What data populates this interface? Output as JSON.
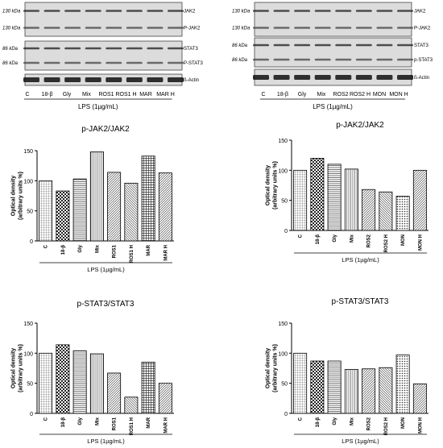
{
  "blots": [
    {
      "strip_groups": [
        [
          {
            "label": "JAK2",
            "size": "130 kDa"
          },
          {
            "label": "P-JAK2",
            "size": "130 kDa"
          }
        ],
        [
          {
            "label": "STAT3",
            "size": "86 kDa"
          },
          {
            "label": "P-STAT3",
            "size": "86 kDa"
          }
        ],
        [
          {
            "label": "ß-Actin",
            "size": ""
          }
        ]
      ],
      "lanes": [
        "C",
        "18-β",
        "Gly",
        "Mix",
        "ROS1",
        "ROS1 H",
        "MAR",
        "MAR H"
      ],
      "treatment": "LPS (1µg/mL)"
    },
    {
      "strip_groups": [
        [
          {
            "label": "JAK2",
            "size": "130 kDa"
          },
          {
            "label": "P-JAK2",
            "size": "130 kDa"
          }
        ],
        [
          {
            "label": "STAT3",
            "size": "86 kDa"
          },
          {
            "label": "p-STAT3",
            "size": "86 kDa"
          }
        ],
        [
          {
            "label": "ß-Actin",
            "size": ""
          }
        ]
      ],
      "lanes": [
        "C",
        "18-β",
        "Gly",
        "Mix",
        "ROS2",
        "ROS2 H",
        "MON",
        "MON H"
      ],
      "treatment": "LPS (1µg/mL)"
    }
  ],
  "chart_data": [
    {
      "type": "bar",
      "title": "p-JAK2/JAK2",
      "categories": [
        "C",
        "18-β",
        "Gly",
        "Mix",
        "ROS1",
        "ROS1 H",
        "MAR",
        "MAR H"
      ],
      "values": [
        100,
        83,
        103,
        148,
        114,
        96,
        141,
        113
      ],
      "patterns": [
        "grid",
        "checker",
        "hlines",
        "vlines",
        "diag",
        "diag2",
        "cross",
        "diag"
      ],
      "ylabel": "Optical density\n(arbitrary units %)",
      "xlabel": "LPS (1µg/mL)",
      "ylim": [
        0,
        150
      ],
      "yticks": [
        0,
        50,
        100,
        150
      ]
    },
    {
      "type": "bar",
      "title": "p-JAK2/JAK2",
      "categories": [
        "C",
        "18-β",
        "Gly",
        "Mix",
        "ROS2",
        "ROS2 H",
        "MON",
        "MON H"
      ],
      "values": [
        100,
        120,
        110,
        102,
        68,
        64,
        57,
        100
      ],
      "patterns": [
        "grid",
        "checker",
        "hlines",
        "vlines",
        "diag",
        "diag2",
        "dots",
        "diag"
      ],
      "ylabel": "Optical density\n(arbitrary units %)",
      "xlabel": "LPS (1µg/mL)",
      "ylim": [
        0,
        150
      ],
      "yticks": [
        0,
        50,
        100,
        150
      ]
    },
    {
      "type": "bar",
      "title": "p-STAT3/STAT3",
      "categories": [
        "C",
        "18-β",
        "Gly",
        "Mix",
        "ROS1",
        "ROS1 H",
        "MAR",
        "MAR H"
      ],
      "values": [
        100,
        114,
        104,
        99,
        67,
        27,
        85,
        50
      ],
      "patterns": [
        "grid",
        "checker",
        "hlines",
        "vlines",
        "diag",
        "diag2",
        "cross",
        "diag"
      ],
      "ylabel": "Optical density\n(arbitrary units %)",
      "xlabel": "LPS (1µg/mL)",
      "ylim": [
        0,
        150
      ],
      "yticks": [
        0,
        50,
        100,
        150
      ]
    },
    {
      "type": "bar",
      "title": "p-STAT3/STAT3",
      "categories": [
        "C",
        "18-β",
        "Gly",
        "Mix",
        "ROS2",
        "ROS2 H",
        "MON",
        "MON H"
      ],
      "values": [
        100,
        87,
        87,
        73,
        74,
        76,
        97,
        49
      ],
      "patterns": [
        "grid",
        "checker",
        "hlines",
        "vlines",
        "diag",
        "diag2",
        "dots",
        "diag"
      ],
      "ylabel": "Optical density\n(arbitrary units %)",
      "xlabel": "LPS (1µg/mL)",
      "ylim": [
        0,
        150
      ],
      "yticks": [
        0,
        50,
        100,
        150
      ]
    }
  ]
}
